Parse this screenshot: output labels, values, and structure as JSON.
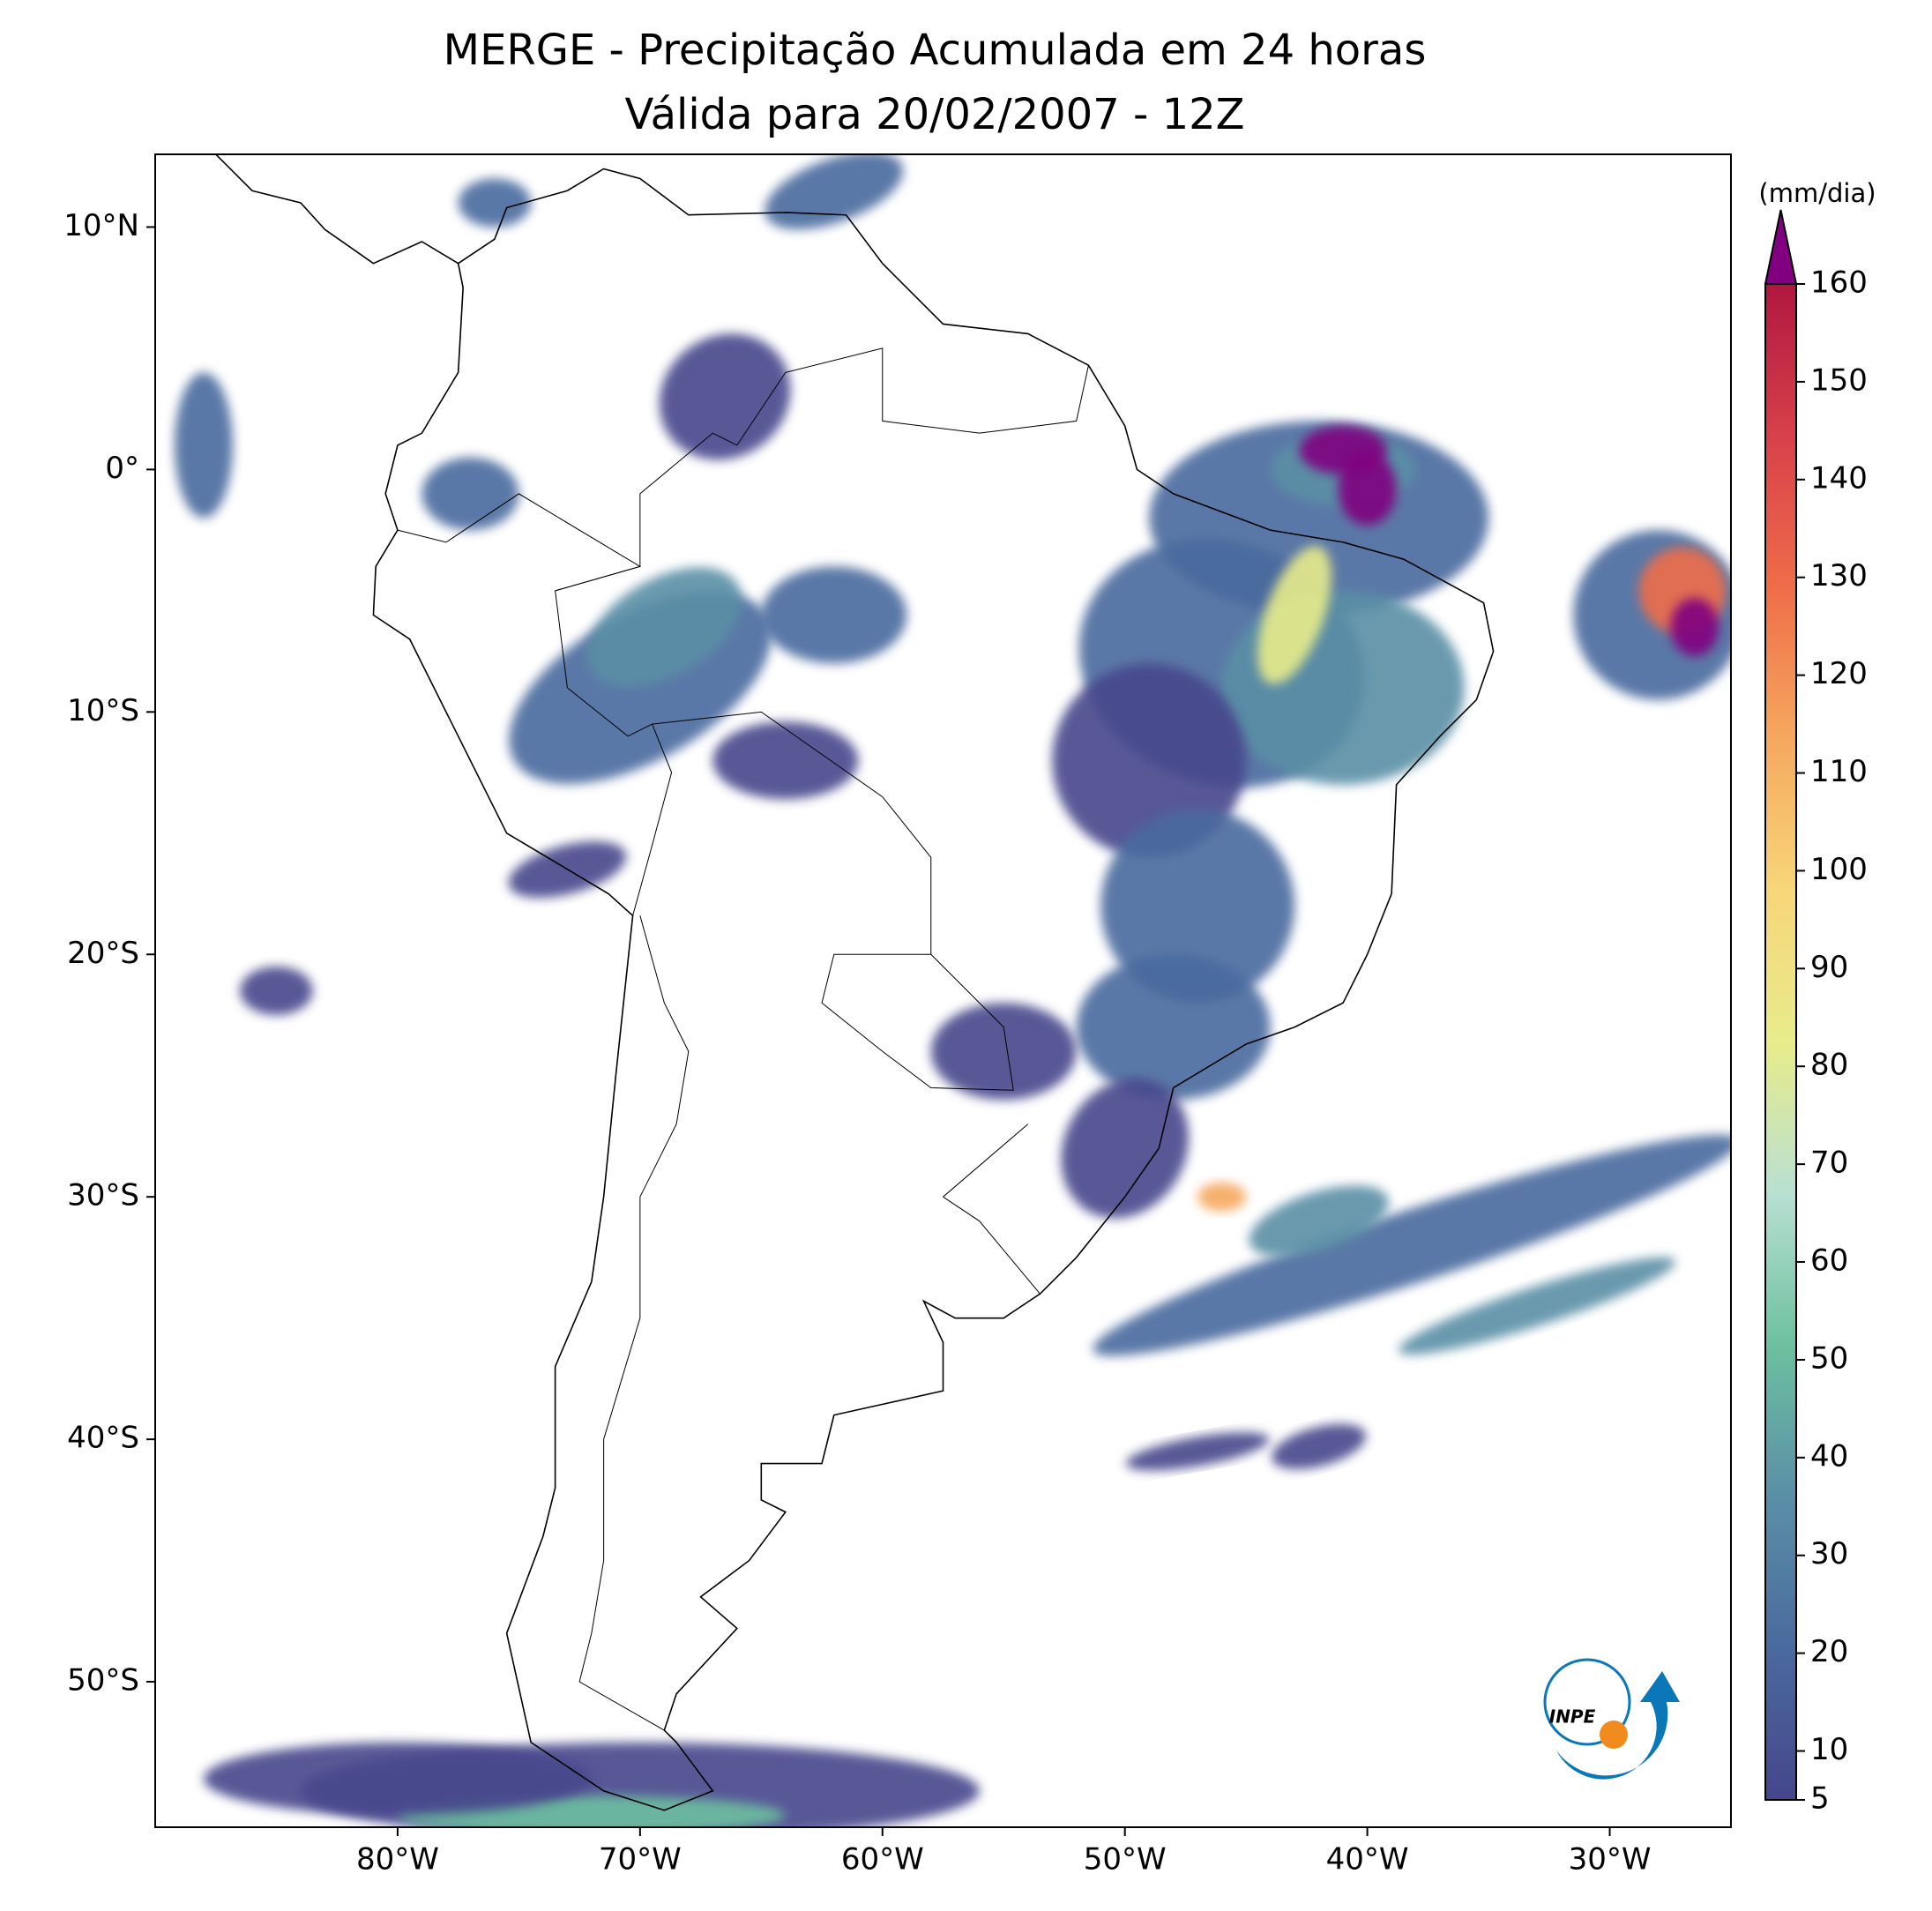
{
  "chart_data": {
    "type": "map",
    "title": "MERGE - Precipitação Acumulada em 24 horas",
    "subtitle": "Válida para 20/02/2007 - 12Z",
    "xlim": [
      -90,
      -25
    ],
    "ylim": [
      -56,
      13
    ],
    "xticks": [
      {
        "value": -80,
        "label": "80°W"
      },
      {
        "value": -70,
        "label": "70°W"
      },
      {
        "value": -60,
        "label": "60°W"
      },
      {
        "value": -50,
        "label": "50°W"
      },
      {
        "value": -40,
        "label": "40°W"
      },
      {
        "value": -30,
        "label": "30°W"
      }
    ],
    "yticks": [
      {
        "value": 10,
        "label": "10°N"
      },
      {
        "value": 0,
        "label": "0°"
      },
      {
        "value": -10,
        "label": "10°S"
      },
      {
        "value": -20,
        "label": "20°S"
      },
      {
        "value": -30,
        "label": "30°S"
      },
      {
        "value": -40,
        "label": "40°S"
      },
      {
        "value": -50,
        "label": "50°S"
      }
    ],
    "colorbar": {
      "label": "(mm/dia)",
      "clim": [
        5,
        160
      ],
      "ticks": [
        5,
        10,
        20,
        30,
        40,
        50,
        60,
        70,
        80,
        90,
        100,
        110,
        120,
        130,
        140,
        150,
        160
      ],
      "colors": [
        "#46468c",
        "#4a6a9e",
        "#5a8fa6",
        "#6dc0a0",
        "#b8e0d2",
        "#e8ec8a",
        "#f7d67a",
        "#f6a85e",
        "#ef6d49",
        "#d8404a",
        "#b0173f"
      ],
      "extend_color": "#800080"
    },
    "logo_text": "INPE"
  }
}
